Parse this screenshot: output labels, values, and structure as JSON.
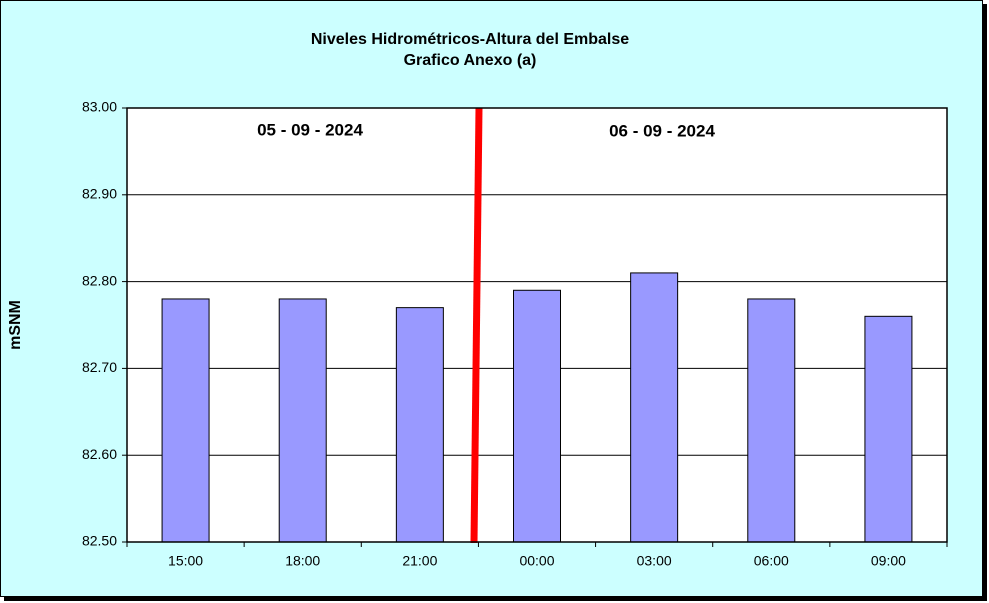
{
  "chart_data": {
    "type": "bar",
    "title": "Niveles Hidrométricos-Altura del Embalse",
    "subtitle": "Grafico Anexo (a)",
    "y_label": "mSNM",
    "annotations": [
      "05 - 09 - 2024",
      "06 - 09 - 2024"
    ],
    "categories": [
      "15:00",
      "18:00",
      "21:00",
      "00:00",
      "03:00",
      "06:00",
      "09:00"
    ],
    "values": [
      82.78,
      82.78,
      82.77,
      82.79,
      82.81,
      82.78,
      82.76
    ],
    "color": "#9999ff",
    "ylim": [
      82.5,
      83.0
    ],
    "yticks": [
      {
        "value": 82.5,
        "label": "82.50"
      },
      {
        "value": 82.6,
        "label": "82.60"
      },
      {
        "value": 82.7,
        "label": "82.70"
      },
      {
        "value": 82.8,
        "label": "82.80"
      },
      {
        "value": 82.9,
        "label": "82.90"
      },
      {
        "value": 83.0,
        "label": "83.00"
      }
    ],
    "grid": true
  }
}
